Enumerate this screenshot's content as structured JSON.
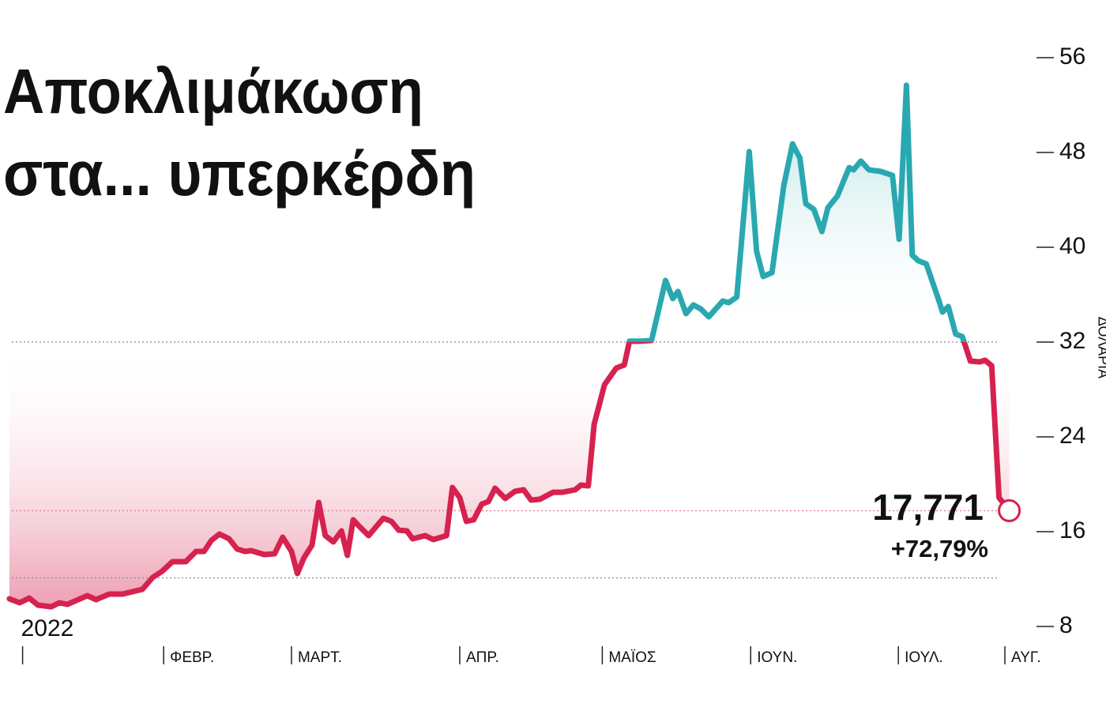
{
  "chart_data": {
    "type": "line",
    "title": [
      "Αποκλιμάκωση",
      "στα... υπερκέρδη"
    ],
    "y_label": "ΔΟΛΑΡΙΑ",
    "color": "#d6224f",
    "above_color": "#2aa8b0",
    "x": [
      0.2,
      1.6,
      2.9,
      4.1,
      5.9,
      7.0,
      8.1,
      10.8,
      12.0,
      13.8,
      15.6,
      18.3,
      19.7,
      21.0,
      22.4,
      24.2,
      25.6,
      26.7,
      27.7,
      28.8,
      30.1,
      31.2,
      32.3,
      33.1,
      34.9,
      36.3,
      37.4,
      38.6,
      39.4,
      40.3,
      41.4,
      42.3,
      43.2,
      44.3,
      45.4,
      46.2,
      47.0,
      47.8,
      49.1,
      51.1,
      52.2,
      53.2,
      54.3,
      55.1,
      56.8,
      57.9,
      59.7,
      60.5,
      61.5,
      62.4,
      63.4,
      64.5,
      65.4,
      66.3,
      67.7,
      69.0,
      70.2,
      71.2,
      72.4,
      74.2,
      75.5,
      77.2,
      78.0,
      79.0,
      79.8,
      81.2,
      82.8,
      83.9,
      84.6,
      86.0,
      87.6,
      89.5,
      90.5,
      91.2,
      92.3,
      93.3,
      94.3,
      95.4,
      97.3,
      98.1,
      99.2,
      100.9,
      101.9,
      102.8,
      104.0,
      105.6,
      106.8,
      107.8,
      108.6,
      109.7,
      110.8,
      111.6,
      112.9,
      114.5,
      115.1,
      116.1,
      117.2,
      118.8,
      120.4,
      121.3,
      122.3,
      123.1,
      123.9,
      125.0,
      126.7,
      127.2,
      128.0,
      129.0,
      129.9,
      131.0,
      132.3,
      133.0,
      133.9,
      134.9,
      136.3
    ],
    "values": [
      10.33,
      10.0,
      10.4,
      9.8,
      9.67,
      10.0,
      9.87,
      10.6,
      10.27,
      10.73,
      10.73,
      11.13,
      12.13,
      12.67,
      13.47,
      13.47,
      14.33,
      14.33,
      15.27,
      15.8,
      15.4,
      14.53,
      14.33,
      14.4,
      14.07,
      14.13,
      15.53,
      14.33,
      12.47,
      13.8,
      14.87,
      18.47,
      15.67,
      15.13,
      16.07,
      14.0,
      17.0,
      16.47,
      15.67,
      17.13,
      16.87,
      16.13,
      16.07,
      15.4,
      15.67,
      15.33,
      15.67,
      19.73,
      18.87,
      16.87,
      17.0,
      18.33,
      18.53,
      19.67,
      18.8,
      19.4,
      19.53,
      18.67,
      18.73,
      19.33,
      19.33,
      19.53,
      19.93,
      19.87,
      25.07,
      28.4,
      29.8,
      30.07,
      32.07,
      32.07,
      32.13,
      37.2,
      35.67,
      36.27,
      34.4,
      35.13,
      34.8,
      34.13,
      35.47,
      35.33,
      35.8,
      48.07,
      39.67,
      37.53,
      37.87,
      45.2,
      48.73,
      47.53,
      43.67,
      43.2,
      41.33,
      43.33,
      44.33,
      46.73,
      46.53,
      47.27,
      46.53,
      46.4,
      46.07,
      40.67,
      53.67,
      39.33,
      38.87,
      38.6,
      35.53,
      34.53,
      35.0,
      32.67,
      32.47,
      30.4,
      30.33,
      30.47,
      30.0,
      18.87,
      17.771
    ],
    "annotations": [
      {
        "text": "17,771"
      },
      {
        "text": "+72,79%"
      }
    ],
    "hlines": [
      {
        "value": 32,
        "color": "#8a8a8a"
      },
      {
        "value": 17.771,
        "color": "#e07f98"
      },
      {
        "value": 12.1,
        "color": "#6f8fc4"
      }
    ],
    "xlim": [
      0,
      138
    ],
    "xticks": [
      {
        "value": 2,
        "label": "2022"
      },
      {
        "value": 21.2,
        "label": "ΦΕΒΡ."
      },
      {
        "value": 38.6,
        "label": "ΜΑΡΤ."
      },
      {
        "value": 61.5,
        "label": "ΑΠΡ."
      },
      {
        "value": 80.9,
        "label": "ΜΑΪΟΣ"
      },
      {
        "value": 101.1,
        "label": "ΙΟΥΝ."
      },
      {
        "value": 121.2,
        "label": "ΙΟΥΛ."
      },
      {
        "value": 135.7,
        "label": "ΑΥΓ."
      }
    ],
    "ylim": [
      8,
      56
    ],
    "yticks": [
      8,
      16,
      24,
      32,
      40,
      48,
      56
    ]
  }
}
